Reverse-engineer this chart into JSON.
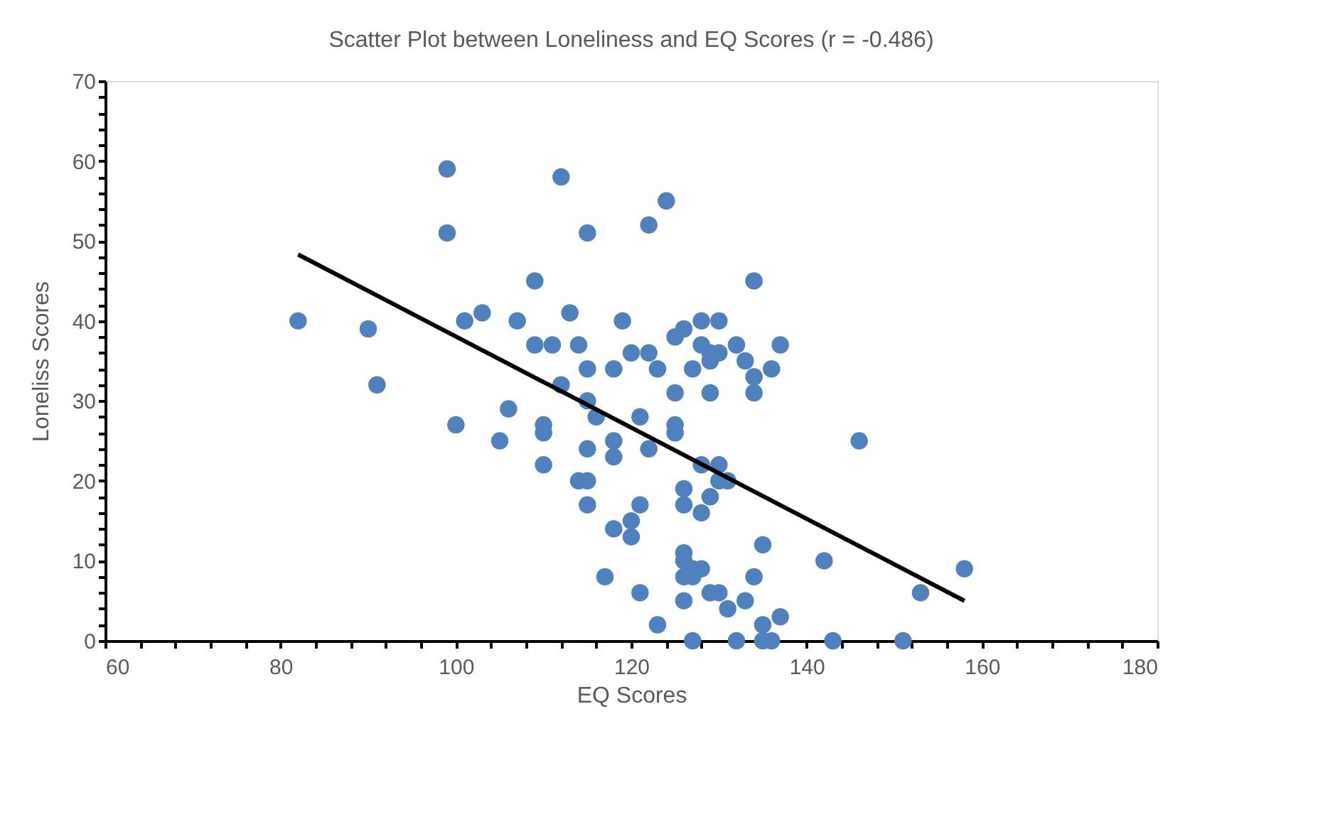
{
  "chart_data": {
    "type": "scatter",
    "title": "Scatter Plot between Loneliness and EQ Scores (r = -0.486)",
    "xlabel": "EQ Scores",
    "ylabel": "Loneliss Scores",
    "xlim": [
      60,
      180
    ],
    "ylim": [
      0,
      70
    ],
    "xticks": [
      60,
      {
        "value": 64,
        "label": null
      },
      {
        "value": 68,
        "label": null
      },
      {
        "value": 72,
        "label": null
      },
      {
        "value": 76,
        "label": null
      },
      80,
      {
        "value": 84,
        "label": null
      },
      {
        "value": 88,
        "label": null
      },
      {
        "value": 92,
        "label": null
      },
      {
        "value": 96,
        "label": null
      },
      100,
      {
        "value": 104,
        "label": null
      },
      {
        "value": 108,
        "label": null
      },
      {
        "value": 112,
        "label": null
      },
      {
        "value": 116,
        "label": null
      },
      120,
      {
        "value": 124,
        "label": null
      },
      {
        "value": 128,
        "label": null
      },
      {
        "value": 132,
        "label": null
      },
      {
        "value": 136,
        "label": null
      },
      140,
      {
        "value": 144,
        "label": null
      },
      {
        "value": 148,
        "label": null
      },
      {
        "value": 152,
        "label": null
      },
      {
        "value": 156,
        "label": null
      },
      160,
      {
        "value": 164,
        "label": null
      },
      {
        "value": 168,
        "label": null
      },
      {
        "value": 172,
        "label": null
      },
      {
        "value": 176,
        "label": null
      },
      180
    ],
    "yticks": [
      0,
      {
        "value": 2,
        "label": null
      },
      {
        "value": 4,
        "label": null
      },
      {
        "value": 6,
        "label": null
      },
      {
        "value": 8,
        "label": null
      },
      10,
      {
        "value": 12,
        "label": null
      },
      {
        "value": 14,
        "label": null
      },
      {
        "value": 16,
        "label": null
      },
      {
        "value": 18,
        "label": null
      },
      20,
      {
        "value": 22,
        "label": null
      },
      {
        "value": 24,
        "label": null
      },
      {
        "value": 26,
        "label": null
      },
      {
        "value": 28,
        "label": null
      },
      30,
      {
        "value": 32,
        "label": null
      },
      {
        "value": 34,
        "label": null
      },
      {
        "value": 36,
        "label": null
      },
      {
        "value": 38,
        "label": null
      },
      40,
      {
        "value": 42,
        "label": null
      },
      {
        "value": 44,
        "label": null
      },
      {
        "value": 46,
        "label": null
      },
      {
        "value": 48,
        "label": null
      },
      50,
      {
        "value": 52,
        "label": null
      },
      {
        "value": 54,
        "label": null
      },
      {
        "value": 56,
        "label": null
      },
      {
        "value": 58,
        "label": null
      },
      60,
      {
        "value": 62,
        "label": null
      },
      {
        "value": 64,
        "label": null
      },
      {
        "value": 66,
        "label": null
      },
      {
        "value": 68,
        "label": null
      },
      70
    ],
    "grid": false,
    "series": [
      {
        "marker": "circle",
        "color": "#4e81bd",
        "x": [
          82,
          90,
          91,
          99,
          99,
          100,
          101,
          103,
          105,
          106,
          107,
          109,
          109,
          110,
          110,
          110,
          111,
          112,
          112,
          113,
          114,
          114,
          115,
          115,
          115,
          115,
          115,
          115,
          116,
          117,
          118,
          118,
          118,
          118,
          119,
          120,
          120,
          120,
          121,
          121,
          121,
          122,
          122,
          122,
          123,
          123,
          124,
          125,
          125,
          125,
          125,
          126,
          126,
          126,
          126,
          126,
          126,
          126,
          127,
          127,
          127,
          127,
          128,
          128,
          128,
          128,
          128,
          129,
          129,
          129,
          129,
          129,
          130,
          130,
          130,
          130,
          130,
          131,
          131,
          132,
          132,
          133,
          133,
          134,
          134,
          134,
          134,
          135,
          135,
          135,
          136,
          136,
          137,
          137,
          142,
          143,
          146,
          151,
          153,
          158
        ],
        "values": [
          40,
          39,
          32,
          59,
          51,
          27,
          40,
          41,
          25,
          29,
          40,
          45,
          37,
          27,
          26,
          22,
          37,
          58,
          32,
          41,
          37,
          20,
          51,
          34,
          30,
          24,
          20,
          17,
          28,
          8,
          34,
          25,
          23,
          14,
          40,
          36,
          15,
          13,
          28,
          17,
          6,
          52,
          36,
          24,
          34,
          2,
          55,
          38,
          31,
          27,
          26,
          39,
          19,
          17,
          11,
          10,
          8,
          5,
          34,
          9,
          8,
          0,
          40,
          37,
          22,
          16,
          9,
          36,
          35,
          31,
          18,
          6,
          40,
          36,
          22,
          20,
          6,
          20,
          4,
          37,
          0,
          35,
          5,
          45,
          33,
          31,
          8,
          12,
          2,
          0,
          34,
          0,
          37,
          3,
          10,
          0,
          25,
          0,
          6,
          9
        ]
      },
      {
        "type": "line",
        "marker": "none",
        "color": "#000000",
        "x": [
          82,
          158
        ],
        "values": [
          48.3,
          5
        ]
      }
    ]
  }
}
